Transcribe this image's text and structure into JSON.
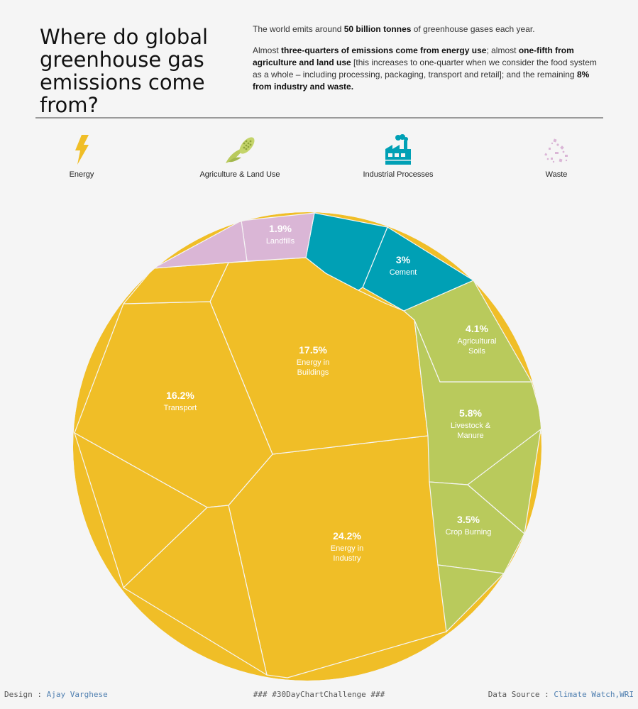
{
  "header": {
    "title": "Where do global greenhouse gas emissions come from?",
    "para1_a": "The world emits around ",
    "para1_b": "50 billion tonnes",
    "para1_c": " of greenhouse gases each year.",
    "para2_a": "Almost ",
    "para2_b": "three-quarters of emissions come from energy use",
    "para2_c": "; almost ",
    "para2_d": "one-fifth from agriculture and land use",
    "para2_e": "  [this increases to one-quarter when we consider the food system as a whole – including processing, packaging, transport and retail]; and the remaining ",
    "para2_f": "8% from industry and waste."
  },
  "categories": [
    {
      "label": "Energy",
      "icon": "lightning-bolt-icon",
      "color": "#f0be27"
    },
    {
      "label": "Agriculture & Land Use",
      "icon": "corn-icon",
      "color": "#b9ca5c"
    },
    {
      "label": "Industrial Processes",
      "icon": "factory-icon",
      "color": "#00a0b5"
    },
    {
      "label": "Waste",
      "icon": "waste-icon",
      "color": "#dab6d6"
    }
  ],
  "chart_data": {
    "type": "voronoi-treemap",
    "labeled_cells": [
      {
        "value": "24.2%",
        "name": "Energy in Industry",
        "lines": [
          "Energy in",
          "Industry"
        ],
        "category": "Energy"
      },
      {
        "value": "17.5%",
        "name": "Energy in Buildings",
        "lines": [
          "Energy in",
          "Buildings"
        ],
        "category": "Energy"
      },
      {
        "value": "16.2%",
        "name": "Transport",
        "lines": [
          "Transport"
        ],
        "category": "Energy"
      },
      {
        "value": "5.8%",
        "name": "Livestock & Manure",
        "lines": [
          "Livestock &",
          "Manure"
        ],
        "category": "Agriculture & Land Use"
      },
      {
        "value": "4.1%",
        "name": "Agricultural Soils",
        "lines": [
          "Agricultural",
          "Soils"
        ],
        "category": "Agriculture & Land Use"
      },
      {
        "value": "3.5%",
        "name": "Crop Burning",
        "lines": [
          "Crop Burning"
        ],
        "category": "Agriculture & Land Use"
      },
      {
        "value": "3%",
        "name": "Cement",
        "lines": [
          "Cement"
        ],
        "category": "Industrial Processes"
      },
      {
        "value": "1.9%",
        "name": "Landfills",
        "lines": [
          "Landfills"
        ],
        "category": "Waste"
      }
    ]
  },
  "footer": {
    "design_label": "Design : ",
    "design_name": "Ajay Varghese",
    "challenge": "### #30DayChartChallenge ###",
    "source_label": "Data Source : ",
    "source_name": "Climate Watch,WRI"
  }
}
